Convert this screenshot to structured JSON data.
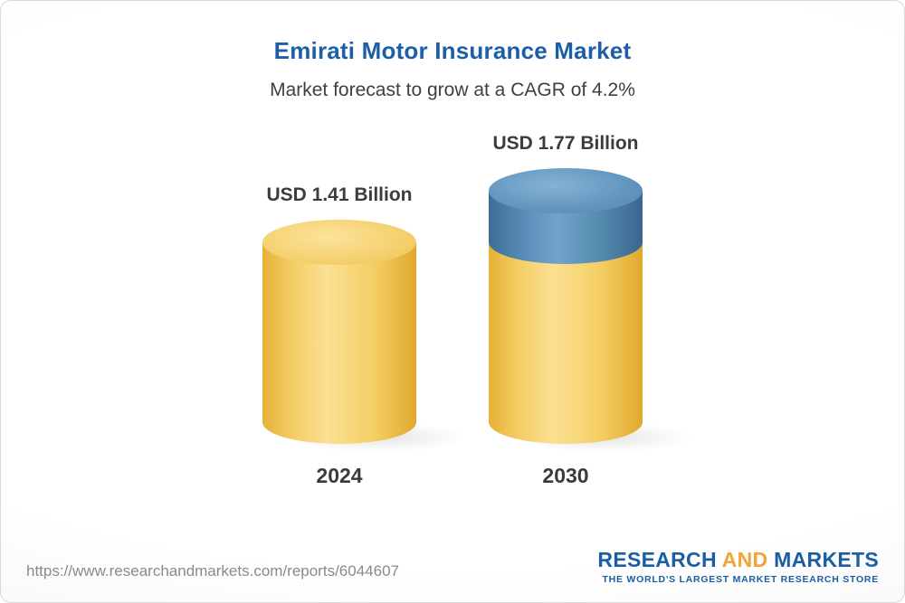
{
  "header": {
    "title": "Emirati Motor Insurance Market",
    "subtitle": "Market forecast to grow at a CAGR of 4.2%"
  },
  "chart_data": {
    "type": "bar",
    "style": "3d-cylinder",
    "title": "Emirati Motor Insurance Market",
    "subtitle": "Market forecast to grow at a CAGR of 4.2%",
    "categories": [
      "2024",
      "2030"
    ],
    "values": [
      1.41,
      1.77
    ],
    "value_labels": [
      "USD 1.41 Billion",
      "USD 1.77 Billion"
    ],
    "unit": "USD Billion",
    "ylim": [
      0,
      1.9
    ],
    "grid": false,
    "legend": "none",
    "colors": {
      "base_segment": "#F2C558",
      "growth_segment": "#4A7DAB"
    },
    "annotations": "2030 cylinder topped with blue segment representing growth over 2024 base value"
  },
  "footer": {
    "url": "https://www.researchandmarkets.com/reports/6044607",
    "logo": {
      "part1": "RESEARCH",
      "part2": "AND",
      "part3": "MARKETS",
      "tagline": "THE WORLD'S LARGEST MARKET RESEARCH STORE"
    }
  }
}
